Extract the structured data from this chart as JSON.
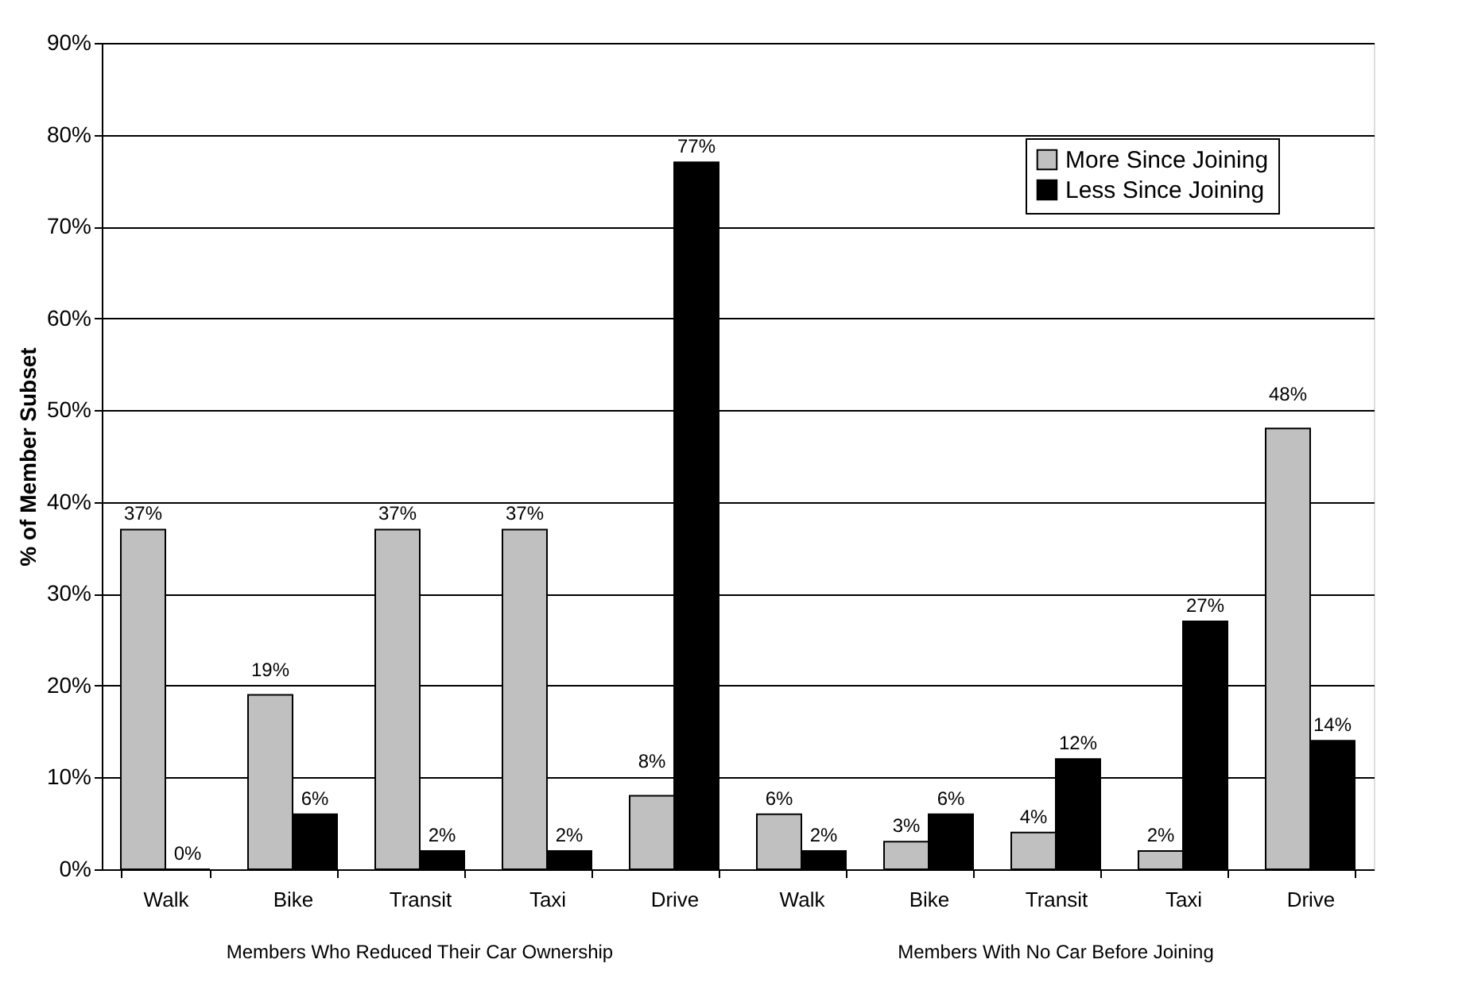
{
  "chart_data": {
    "type": "bar",
    "ylabel": "% of Member Subset",
    "categories": [
      "Walk",
      "Bike",
      "Transit",
      "Taxi",
      "Drive",
      "Walk",
      "Bike",
      "Transit",
      "Taxi",
      "Drive"
    ],
    "series": [
      {
        "name": "More Since Joining",
        "color": "#c0c0c0",
        "values": [
          37,
          19,
          37,
          37,
          8,
          6,
          3,
          4,
          2,
          48
        ],
        "value_labels": [
          "37%",
          "19%",
          "37%",
          "37%",
          "8%",
          "6%",
          "3%",
          "4%",
          "2%",
          "48%"
        ]
      },
      {
        "name": "Less Since Joining",
        "color": "#000000",
        "values": [
          0,
          6,
          2,
          2,
          77,
          2,
          6,
          12,
          27,
          14
        ],
        "value_labels": [
          "0%",
          "6%",
          "2%",
          "2%",
          "77%",
          "2%",
          "6%",
          "12%",
          "27%",
          "14%"
        ]
      }
    ],
    "ylim": [
      0,
      90
    ],
    "yticks": [
      {
        "value": 0,
        "label": "0%"
      },
      {
        "value": 10,
        "label": "10%"
      },
      {
        "value": 20,
        "label": "20%"
      },
      {
        "value": 30,
        "label": "30%"
      },
      {
        "value": 40,
        "label": "40%"
      },
      {
        "value": 50,
        "label": "50%"
      },
      {
        "value": 60,
        "label": "60%"
      },
      {
        "value": 70,
        "label": "70%"
      },
      {
        "value": 80,
        "label": "80%"
      },
      {
        "value": 90,
        "label": "90%"
      }
    ],
    "grid": "y",
    "legend": "top right",
    "annotations": [
      "Members Who Reduced Their Car Ownership",
      "Members With No Car Before Joining"
    ]
  }
}
